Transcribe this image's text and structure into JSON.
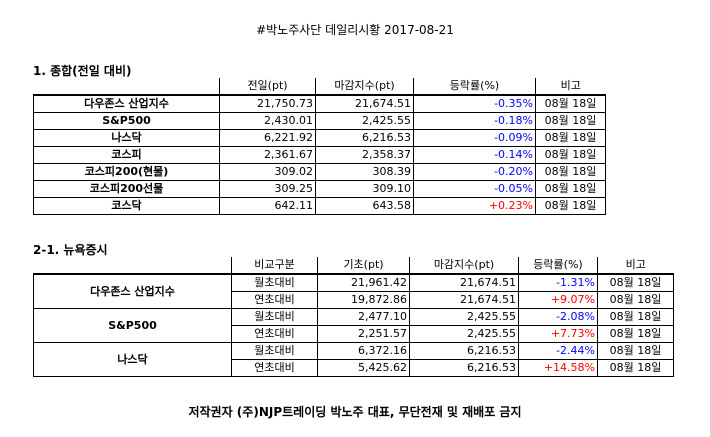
{
  "title": "#박노주사단 데일리시황 2017-08-21",
  "sec1": {
    "heading": "1. 종합(전일 대비)",
    "headers": [
      "전일(pt)",
      "마감지수(pt)",
      "등락률(%)",
      "비고"
    ],
    "rows": [
      {
        "name": "다우존스 산업지수",
        "prev": "21,750.73",
        "close": "21,674.51",
        "rate": "-0.35%",
        "note": "08월 18일",
        "sign": "neg"
      },
      {
        "name": "S&P500",
        "prev": "2,430.01",
        "close": "2,425.55",
        "rate": "-0.18%",
        "note": "08월 18일",
        "sign": "neg"
      },
      {
        "name": "나스닥",
        "prev": "6,221.92",
        "close": "6,216.53",
        "rate": "-0.09%",
        "note": "08월 18일",
        "sign": "neg"
      },
      {
        "name": "코스피",
        "prev": "2,361.67",
        "close": "2,358.37",
        "rate": "-0.14%",
        "note": "08월 18일",
        "sign": "neg"
      },
      {
        "name": "코스피200(현물)",
        "prev": "309.02",
        "close": "308.39",
        "rate": "-0.20%",
        "note": "08월 18일",
        "sign": "neg"
      },
      {
        "name": "코스피200선물",
        "prev": "309.25",
        "close": "309.10",
        "rate": "-0.05%",
        "note": "08월 18일",
        "sign": "neg"
      },
      {
        "name": "코스닥",
        "prev": "642.11",
        "close": "643.58",
        "rate": "+0.23%",
        "note": "08월 18일",
        "sign": "pos"
      }
    ]
  },
  "sec2": {
    "heading": "2-1. 뉴욕증시",
    "headers": [
      "비교구분",
      "기초(pt)",
      "마감지수(pt)",
      "등락률(%)",
      "비고"
    ],
    "groups": [
      {
        "name": "다우존스 산업지수",
        "rows": [
          {
            "type": "월초대비",
            "base": "21,961.42",
            "close": "21,674.51",
            "rate": "-1.31%",
            "note": "08월 18일",
            "sign": "neg"
          },
          {
            "type": "연초대비",
            "base": "19,872.86",
            "close": "21,674.51",
            "rate": "+9.07%",
            "note": "08월 18일",
            "sign": "pos"
          }
        ]
      },
      {
        "name": "S&P500",
        "rows": [
          {
            "type": "월초대비",
            "base": "2,477.10",
            "close": "2,425.55",
            "rate": "-2.08%",
            "note": "08월 18일",
            "sign": "neg"
          },
          {
            "type": "연초대비",
            "base": "2,251.57",
            "close": "2,425.55",
            "rate": "+7.73%",
            "note": "08월 18일",
            "sign": "pos"
          }
        ]
      },
      {
        "name": "나스닥",
        "rows": [
          {
            "type": "월초대비",
            "base": "6,372.16",
            "close": "6,216.53",
            "rate": "-2.44%",
            "note": "08월 18일",
            "sign": "neg"
          },
          {
            "type": "연초대비",
            "base": "5,425.62",
            "close": "6,216.53",
            "rate": "+14.58%",
            "note": "08월 18일",
            "sign": "pos"
          }
        ]
      }
    ]
  },
  "footer": "저작권자 (주)NJP트레이딩 박노주 대표, 무단전재 및 재배포 금지"
}
